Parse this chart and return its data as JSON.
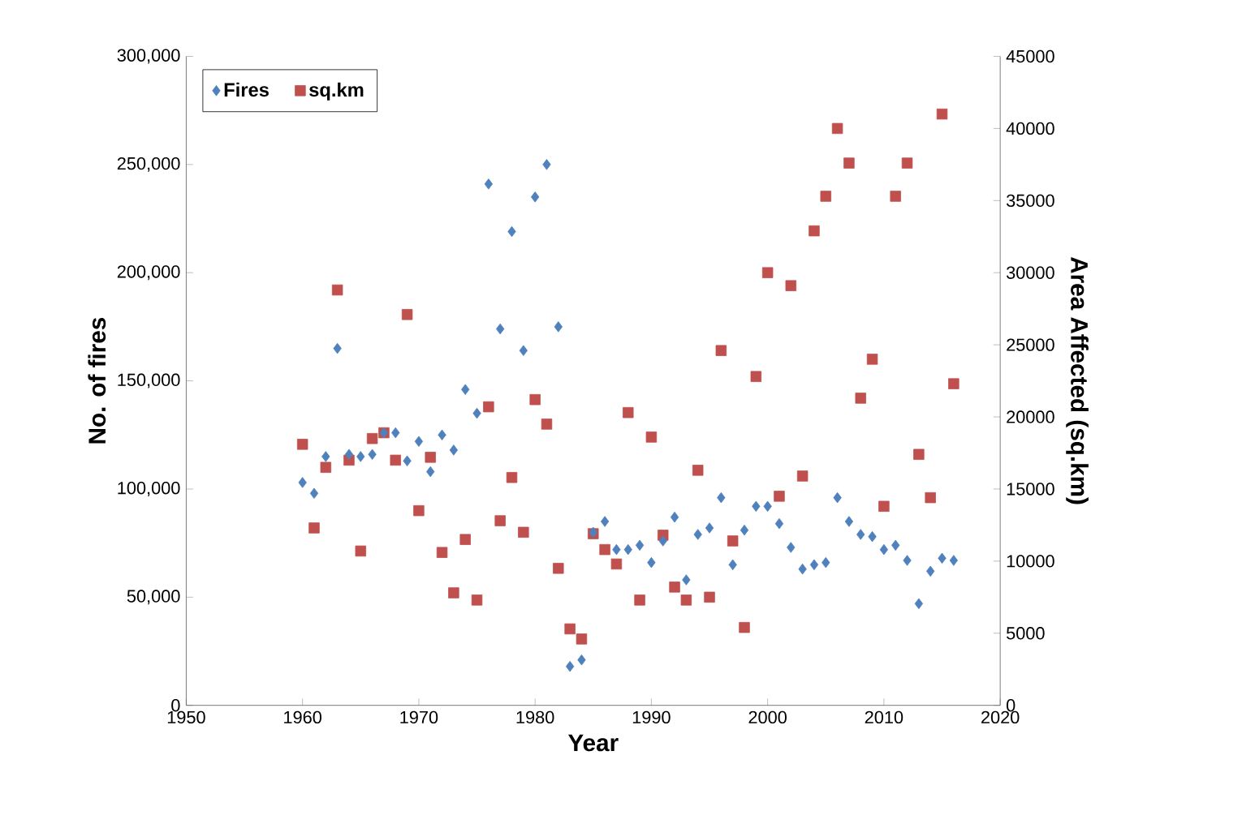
{
  "chart_data": {
    "type": "scatter",
    "xlabel": "Year",
    "ylabel": "No. of fires",
    "y2label": "Area Affected (sq.km)",
    "x": [
      1960,
      1961,
      1962,
      1963,
      1964,
      1965,
      1966,
      1967,
      1968,
      1969,
      1970,
      1971,
      1972,
      1973,
      1974,
      1975,
      1976,
      1977,
      1978,
      1979,
      1980,
      1981,
      1982,
      1983,
      1984,
      1985,
      1986,
      1987,
      1988,
      1989,
      1990,
      1991,
      1992,
      1993,
      1994,
      1995,
      1996,
      1997,
      1998,
      1999,
      2000,
      2001,
      2002,
      2003,
      2004,
      2005,
      2006,
      2007,
      2008,
      2009,
      2010,
      2011,
      2012,
      2013,
      2014,
      2015,
      2016
    ],
    "series": [
      {
        "name": "Fires",
        "color": "#4f81bd",
        "marker": "diamond",
        "values": [
          103000,
          98000,
          115000,
          165000,
          116000,
          115000,
          116000,
          126000,
          126000,
          113000,
          122000,
          108000,
          125000,
          118000,
          146000,
          135000,
          241000,
          174000,
          219000,
          164000,
          235000,
          250000,
          175000,
          18000,
          21000,
          80000,
          85000,
          72000,
          72000,
          74000,
          66000,
          76000,
          87000,
          58000,
          79000,
          82000,
          96000,
          65000,
          81000,
          92000,
          92000,
          84000,
          73000,
          63000,
          65000,
          66000,
          96000,
          85000,
          79000,
          78000,
          72000,
          74000,
          67000,
          47000,
          62000,
          68000,
          67000
        ]
      },
      {
        "name": "sq.km",
        "color": "#c0504d",
        "marker": "square",
        "axis": "y2",
        "values": [
          18100,
          12300,
          16500,
          28800,
          17000,
          10700,
          18500,
          18900,
          17000,
          27100,
          13500,
          17200,
          10600,
          7800,
          11500,
          7300,
          20700,
          12800,
          15800,
          12000,
          21200,
          19500,
          9500,
          5300,
          4600,
          11900,
          10800,
          9800,
          20300,
          7300,
          18600,
          11800,
          8200,
          7300,
          16300,
          7500,
          24600,
          11400,
          5400,
          22800,
          30000,
          14500,
          29100,
          15900,
          32900,
          35300,
          40000,
          37600,
          21300,
          24000,
          13800,
          35300,
          37600,
          17400,
          14400,
          41000,
          22300
        ]
      }
    ],
    "xlim": [
      1950,
      2020
    ],
    "xticks": [
      1950,
      1960,
      1970,
      1980,
      1990,
      2000,
      2010,
      2020
    ],
    "ylim": [
      0,
      300000
    ],
    "yticks": [
      {
        "value": 0,
        "label": "0"
      },
      {
        "value": 50000,
        "label": "50,000"
      },
      {
        "value": 100000,
        "label": "100,000"
      },
      {
        "value": 150000,
        "label": "150,000"
      },
      {
        "value": 200000,
        "label": "200,000"
      },
      {
        "value": 250000,
        "label": "250,000"
      },
      {
        "value": 300000,
        "label": "300,000"
      }
    ],
    "y2lim": [
      0,
      45000
    ],
    "y2ticks": [
      0,
      5000,
      10000,
      15000,
      20000,
      25000,
      30000,
      35000,
      40000,
      45000
    ],
    "legend": "top left",
    "grid": false
  }
}
